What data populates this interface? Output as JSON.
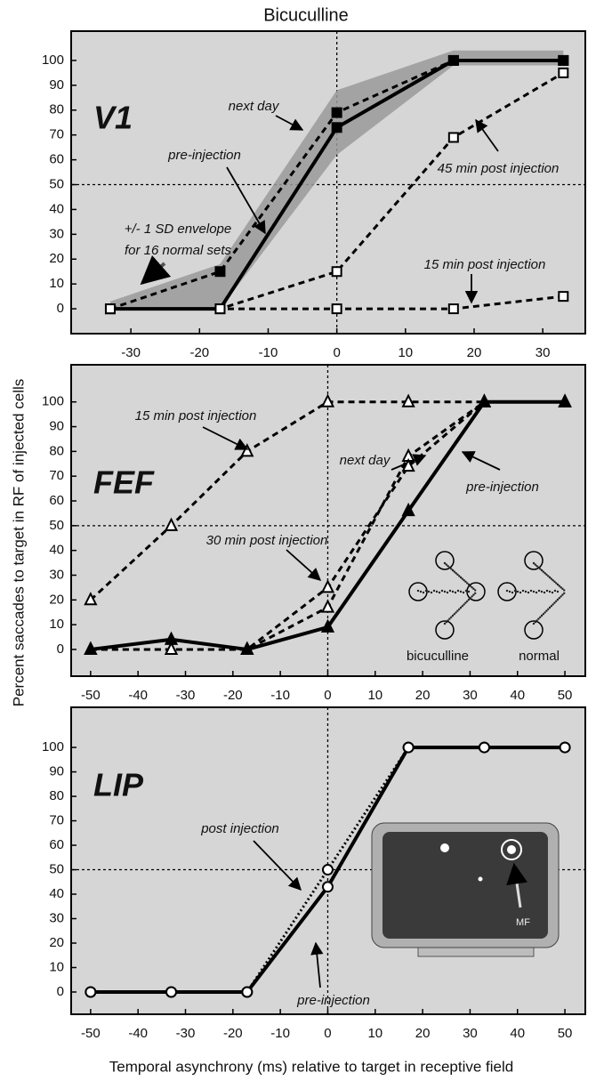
{
  "title": "Bicuculline",
  "ylabel": "Percent saccades to target in RF of injected cells",
  "xlabel": "Temporal asynchrony (ms) relative to target in receptive field",
  "chart_data": [
    {
      "type": "line",
      "panel_label": "V1",
      "x": [
        -33,
        -17,
        0,
        17,
        33
      ],
      "xlim": [
        -38.7,
        36.2
      ],
      "xticks": [
        -30,
        -20,
        -10,
        0,
        10,
        20,
        30
      ],
      "ylim": [
        -10,
        111.8
      ],
      "yticks": [
        0,
        10,
        20,
        30,
        40,
        50,
        60,
        70,
        80,
        90,
        100
      ],
      "ref_lines": {
        "x": 0,
        "y": 50
      },
      "band": {
        "label_lines": [
          "+/- 1 SD envelope",
          "for 16 normal sets"
        ],
        "color": "#9a9a9a",
        "lower": [
          0,
          0,
          62,
          98,
          98
        ],
        "upper": [
          3,
          18,
          88,
          104,
          104
        ]
      },
      "series": [
        {
          "name": "pre-injection",
          "color": "#000000",
          "style": "solid",
          "marker": "filled-square",
          "values": [
            0,
            0,
            73,
            100,
            100
          ]
        },
        {
          "name": "next day",
          "color": "#000000",
          "style": "dashed",
          "marker": "filled-square",
          "values": [
            0,
            15,
            79,
            100,
            100
          ]
        },
        {
          "name": "45 min post injection",
          "color": "#000000",
          "style": "dashed",
          "marker": "open-square",
          "values": [
            0,
            0,
            15,
            69,
            95
          ]
        },
        {
          "name": "15 min post injection",
          "color": "#000000",
          "style": "dashed",
          "marker": "open-square",
          "values": [
            0,
            0,
            0,
            0,
            5
          ]
        }
      ]
    },
    {
      "type": "line",
      "panel_label": "FEF",
      "x": [
        -50,
        -33,
        -17,
        0,
        17,
        33,
        50
      ],
      "xlim": [
        -54.1,
        54.3
      ],
      "xticks": [
        -50,
        -40,
        -30,
        -20,
        -10,
        0,
        10,
        20,
        30,
        40,
        50
      ],
      "ylim": [
        -10.8,
        115
      ],
      "yticks": [
        0,
        10,
        20,
        30,
        40,
        50,
        60,
        70,
        80,
        90,
        100
      ],
      "ref_lines": {
        "x": 0,
        "y": 50
      },
      "inset_labels": [
        "bicuculline",
        "normal"
      ],
      "series": [
        {
          "name": "15 min post injection",
          "color": "#000000",
          "style": "dashed",
          "marker": "open-triangle",
          "values": [
            20,
            50,
            80,
            100,
            100,
            100,
            100
          ]
        },
        {
          "name": "next day",
          "color": "#000000",
          "style": "dashed",
          "marker": "open-triangle",
          "values": [
            0,
            0,
            0,
            17,
            78,
            100,
            100
          ]
        },
        {
          "name": "30 min post injection",
          "color": "#000000",
          "style": "dashed",
          "marker": "open-triangle",
          "values": [
            0,
            0,
            0,
            25,
            74,
            100,
            100
          ]
        },
        {
          "name": "pre-injection",
          "color": "#000000",
          "style": "solid",
          "marker": "filled-triangle",
          "values": [
            0,
            4,
            0,
            9,
            56,
            100,
            100
          ]
        }
      ]
    },
    {
      "type": "line",
      "panel_label": "LIP",
      "x": [
        -50,
        -33,
        -17,
        0,
        17,
        33,
        50
      ],
      "xlim": [
        -54.1,
        54.3
      ],
      "xticks": [
        -50,
        -40,
        -30,
        -20,
        -10,
        0,
        10,
        20,
        30,
        40,
        50
      ],
      "ylim": [
        -9.1,
        116.4
      ],
      "yticks": [
        0,
        10,
        20,
        30,
        40,
        50,
        60,
        70,
        80,
        90,
        100
      ],
      "ref_lines": {
        "x": 0,
        "y": 50
      },
      "inset_labels": [
        "MF"
      ],
      "series": [
        {
          "name": "post injection",
          "color": "#000000",
          "style": "dotted",
          "marker": "open-circle",
          "values": [
            0,
            0,
            0,
            50,
            100,
            100,
            100
          ]
        },
        {
          "name": "pre-injection",
          "color": "#000000",
          "style": "solid",
          "marker": "open-circle",
          "values": [
            0,
            0,
            0,
            43,
            100,
            100,
            100
          ]
        }
      ]
    }
  ]
}
